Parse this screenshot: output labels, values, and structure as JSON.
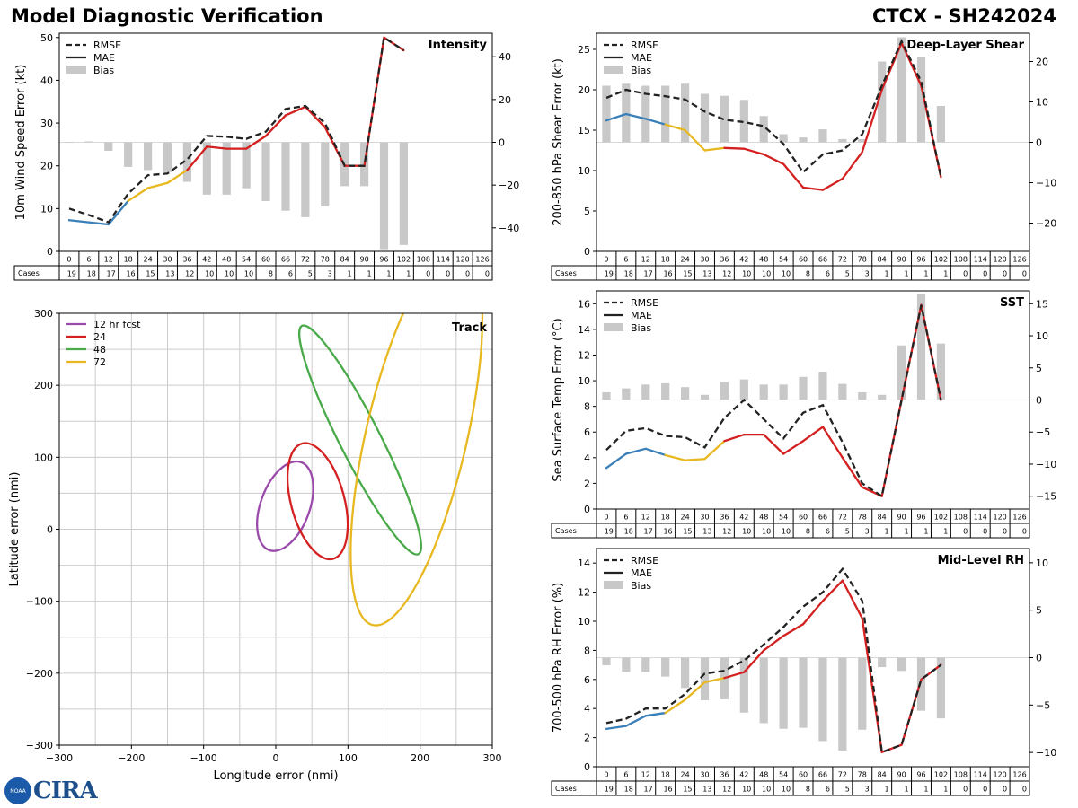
{
  "header": {
    "title": "Model Diagnostic Verification",
    "storm": "CTCX - SH242024"
  },
  "logo": {
    "text": "CIRA",
    "seal": "NOAA"
  },
  "colors": {
    "blue": "#3a7fb8",
    "yellow": "#e8b820",
    "red": "#d42020",
    "green": "#4aaa4a",
    "purple": "#9a4aaa",
    "rmse": "#222222",
    "bias": "#c8c8c8",
    "grid": "#cccccc"
  },
  "legend": {
    "rmse": "RMSE",
    "mae": "MAE",
    "bias": "Bias"
  },
  "cases_label": "Cases",
  "chart_data": [
    {
      "id": "intensity",
      "type": "line",
      "title": "Intensity",
      "ylabel": "10m Wind Speed Error (kt)",
      "x": [
        0,
        6,
        12,
        18,
        24,
        30,
        36,
        42,
        48,
        54,
        60,
        66,
        72,
        78,
        84,
        90,
        96,
        102,
        108,
        114,
        120,
        126
      ],
      "cases": [
        19,
        18,
        17,
        16,
        15,
        13,
        12,
        10,
        10,
        10,
        8,
        6,
        5,
        3,
        1,
        1,
        1,
        1,
        0,
        0,
        0,
        0
      ],
      "ylim": [
        0,
        51
      ],
      "yticks": [
        0,
        10,
        20,
        30,
        40,
        50
      ],
      "ylim_right": [
        -51,
        51
      ],
      "yticks_right": [
        -40,
        -20,
        0,
        20,
        40
      ],
      "rmse": [
        10,
        8.5,
        6.8,
        13.5,
        17.8,
        18.2,
        21.5,
        27,
        26.8,
        26.3,
        28,
        33.3,
        34,
        30,
        20,
        20,
        50,
        47
      ],
      "mae": [
        7.3,
        6.8,
        6.3,
        11.8,
        14.8,
        16,
        19,
        24.5,
        24,
        24,
        27,
        31.8,
        33.8,
        29,
        20,
        20,
        50,
        47
      ],
      "bias": [
        0.2,
        0.4,
        -4,
        -11.5,
        -13,
        -14,
        -18.5,
        -24.5,
        -24.5,
        -21.5,
        -27.5,
        -32,
        -35,
        -30,
        -20.5,
        -20.5,
        -50,
        -48
      ]
    },
    {
      "id": "shear",
      "type": "line",
      "title": "Deep-Layer Shear",
      "ylabel": "200-850 hPa Shear Error (kt)",
      "x": [
        0,
        6,
        12,
        18,
        24,
        30,
        36,
        42,
        48,
        54,
        60,
        66,
        72,
        78,
        84,
        90,
        96,
        102,
        108,
        114,
        120,
        126
      ],
      "cases": [
        19,
        18,
        17,
        16,
        15,
        13,
        12,
        10,
        10,
        10,
        8,
        6,
        5,
        3,
        1,
        1,
        1,
        1,
        0,
        0,
        0,
        0
      ],
      "ylim": [
        0,
        27
      ],
      "yticks": [
        0,
        5,
        10,
        15,
        20,
        25
      ],
      "ylim_right": [
        -27,
        27
      ],
      "yticks_right": [
        -20,
        -10,
        0,
        10,
        20
      ],
      "rmse": [
        19,
        20,
        19.5,
        19.2,
        18.8,
        17.3,
        16.3,
        16,
        15.5,
        13.3,
        9.8,
        12,
        12.5,
        14.5,
        20.5,
        26,
        21,
        9.2
      ],
      "mae": [
        16.2,
        17,
        16.4,
        15.7,
        15,
        12.5,
        12.8,
        12.7,
        12,
        10.8,
        7.9,
        7.6,
        9,
        12.3,
        20,
        25.8,
        20.5,
        9.2
      ],
      "bias": [
        14,
        14.5,
        14,
        14,
        14.5,
        12,
        11.5,
        10.5,
        6.5,
        2,
        1.2,
        3.2,
        0.8,
        0.8,
        20,
        26,
        21,
        9
      ]
    },
    {
      "id": "sst",
      "type": "line",
      "title": "SST",
      "ylabel": "Sea Surface Temp Error (°C)",
      "x": [
        0,
        6,
        12,
        18,
        24,
        30,
        36,
        42,
        48,
        54,
        60,
        66,
        72,
        78,
        84,
        90,
        96,
        102,
        108,
        114,
        120,
        126
      ],
      "cases": [
        19,
        18,
        17,
        16,
        15,
        13,
        12,
        10,
        10,
        10,
        8,
        6,
        5,
        3,
        1,
        1,
        1,
        1,
        0,
        0,
        0,
        0
      ],
      "ylim": [
        0,
        17
      ],
      "yticks": [
        0,
        2,
        4,
        6,
        8,
        10,
        12,
        14,
        16
      ],
      "ylim_right": [
        -17,
        17
      ],
      "yticks_right": [
        -15,
        -10,
        -5,
        0,
        5,
        10,
        15
      ],
      "rmse": [
        4.6,
        6.1,
        6.3,
        5.7,
        5.6,
        4.8,
        7.1,
        8.5,
        7,
        5.5,
        7.5,
        8.1,
        5.2,
        2,
        1,
        8.5,
        15.9,
        8.5
      ],
      "mae": [
        3.2,
        4.3,
        4.7,
        4.2,
        3.8,
        3.9,
        5.3,
        5.8,
        5.8,
        4.3,
        5.3,
        6.4,
        4,
        1.7,
        1,
        8.5,
        15.9,
        8.5
      ],
      "bias": [
        1.2,
        1.8,
        2.4,
        2.6,
        2,
        0.8,
        2.8,
        3.2,
        2.4,
        2.4,
        3.6,
        4.4,
        2.5,
        1.2,
        0.8,
        8.5,
        16.5,
        8.8
      ]
    },
    {
      "id": "rh",
      "type": "line",
      "title": "Mid-Level RH",
      "ylabel": "700-500 hPa RH Error (%)",
      "x": [
        0,
        6,
        12,
        18,
        24,
        30,
        36,
        42,
        48,
        54,
        60,
        66,
        72,
        78,
        84,
        90,
        96,
        102,
        108,
        114,
        120,
        126
      ],
      "cases": [
        19,
        18,
        17,
        16,
        15,
        13,
        12,
        10,
        10,
        10,
        8,
        6,
        5,
        3,
        1,
        1,
        1,
        1,
        0,
        0,
        0,
        0
      ],
      "ylim": [
        0,
        15
      ],
      "yticks": [
        0,
        2,
        4,
        6,
        8,
        10,
        12,
        14
      ],
      "ylim_right": [
        -11.5,
        11.5
      ],
      "yticks_right": [
        -10,
        -5,
        0,
        5,
        10
      ],
      "rmse": [
        3,
        3.3,
        4,
        4,
        5,
        6.4,
        6.6,
        7.3,
        8.4,
        9.6,
        11,
        12,
        13.6,
        11.4,
        1,
        1.5,
        6,
        7
      ],
      "mae": [
        2.6,
        2.8,
        3.5,
        3.7,
        4.6,
        5.8,
        6.1,
        6.5,
        8,
        9,
        9.8,
        11.4,
        12.8,
        10.2,
        1,
        1.5,
        6,
        7
      ],
      "bias": [
        -0.8,
        -1.5,
        -1.5,
        -2,
        -3.2,
        -4.5,
        -4.4,
        -5.8,
        -6.9,
        -7.5,
        -7.4,
        -8.8,
        -9.8,
        -7.6,
        -1,
        -1.4,
        -5.6,
        -6.4
      ]
    },
    {
      "id": "track",
      "type": "scatter",
      "title": "Track",
      "xlabel": "Longitude error (nmi)",
      "ylabel": "Latitude error (nmi)",
      "xlim": [
        -300,
        300
      ],
      "ylim": [
        -300,
        300
      ],
      "xticks": [
        -300,
        -200,
        -100,
        0,
        100,
        200,
        300
      ],
      "yticks": [
        -300,
        -200,
        -100,
        0,
        100,
        200,
        300
      ],
      "ellipses": [
        {
          "label": "12 hr fcst",
          "cx": 13,
          "cy": 32,
          "rx": 34,
          "ry": 65,
          "angle": 20,
          "color": "#9a4aaa"
        },
        {
          "label": "24",
          "cx": 58,
          "cy": 39,
          "rx": 37,
          "ry": 83,
          "angle": -15,
          "color": "#d42020"
        },
        {
          "label": "48",
          "cx": 117,
          "cy": 124,
          "rx": 28,
          "ry": 178,
          "angle": -27,
          "color": "#4aaa4a"
        },
        {
          "label": "72",
          "cx": 195,
          "cy": 130,
          "rx": 70,
          "ry": 270,
          "angle": 13,
          "color": "#e8b820"
        }
      ]
    }
  ]
}
